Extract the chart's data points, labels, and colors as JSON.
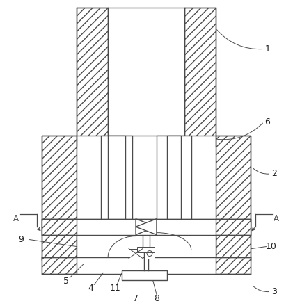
{
  "bg_color": "#ffffff",
  "line_color": "#4a4a4a",
  "lw": 1.0,
  "thin_lw": 0.7,
  "hatch_density": "///",
  "figsize": [
    4.21,
    4.43
  ],
  "dpi": 100
}
